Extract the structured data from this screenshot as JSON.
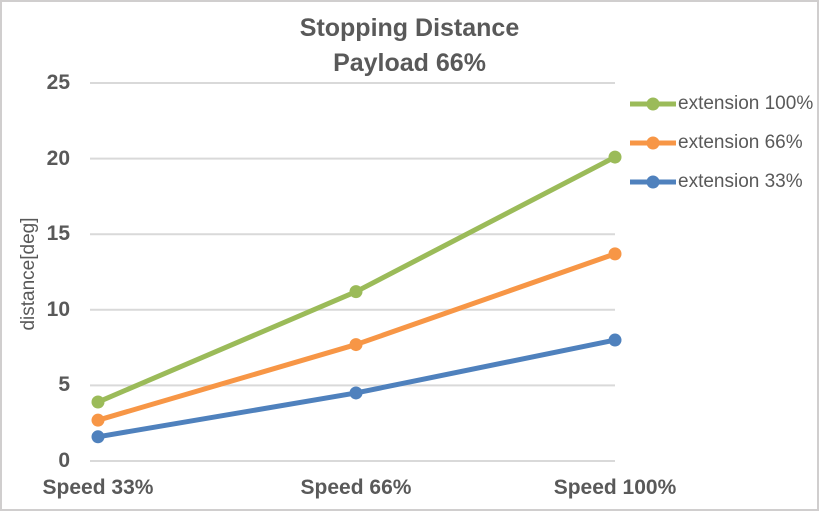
{
  "chart_data": {
    "type": "line",
    "title": "Stopping Distance Payload 66%",
    "title_lines": [
      "Stopping Distance",
      "Payload 66%"
    ],
    "categories": [
      "Speed 33%",
      "Speed 66%",
      "Speed 100%"
    ],
    "series": [
      {
        "name": "extension 100%",
        "color": "#9BBB59",
        "values": [
          3.9,
          11.2,
          20.1
        ]
      },
      {
        "name": "extension 66%",
        "color": "#F79646",
        "values": [
          2.7,
          7.7,
          13.7
        ]
      },
      {
        "name": "extension 33%",
        "color": "#4F81BD",
        "values": [
          1.6,
          4.5,
          8.0
        ]
      }
    ],
    "xlabel": "",
    "ylabel": "distance[deg]",
    "ylim": [
      0,
      25
    ],
    "yticks": [
      0,
      5,
      10,
      15,
      20,
      25
    ],
    "grid": true,
    "legend_position": "right",
    "marker": "circle"
  },
  "colors": {
    "text": "#595959",
    "gridline": "#D9D9D9",
    "border": "#D0CECE",
    "background": "#FFFFFF"
  }
}
